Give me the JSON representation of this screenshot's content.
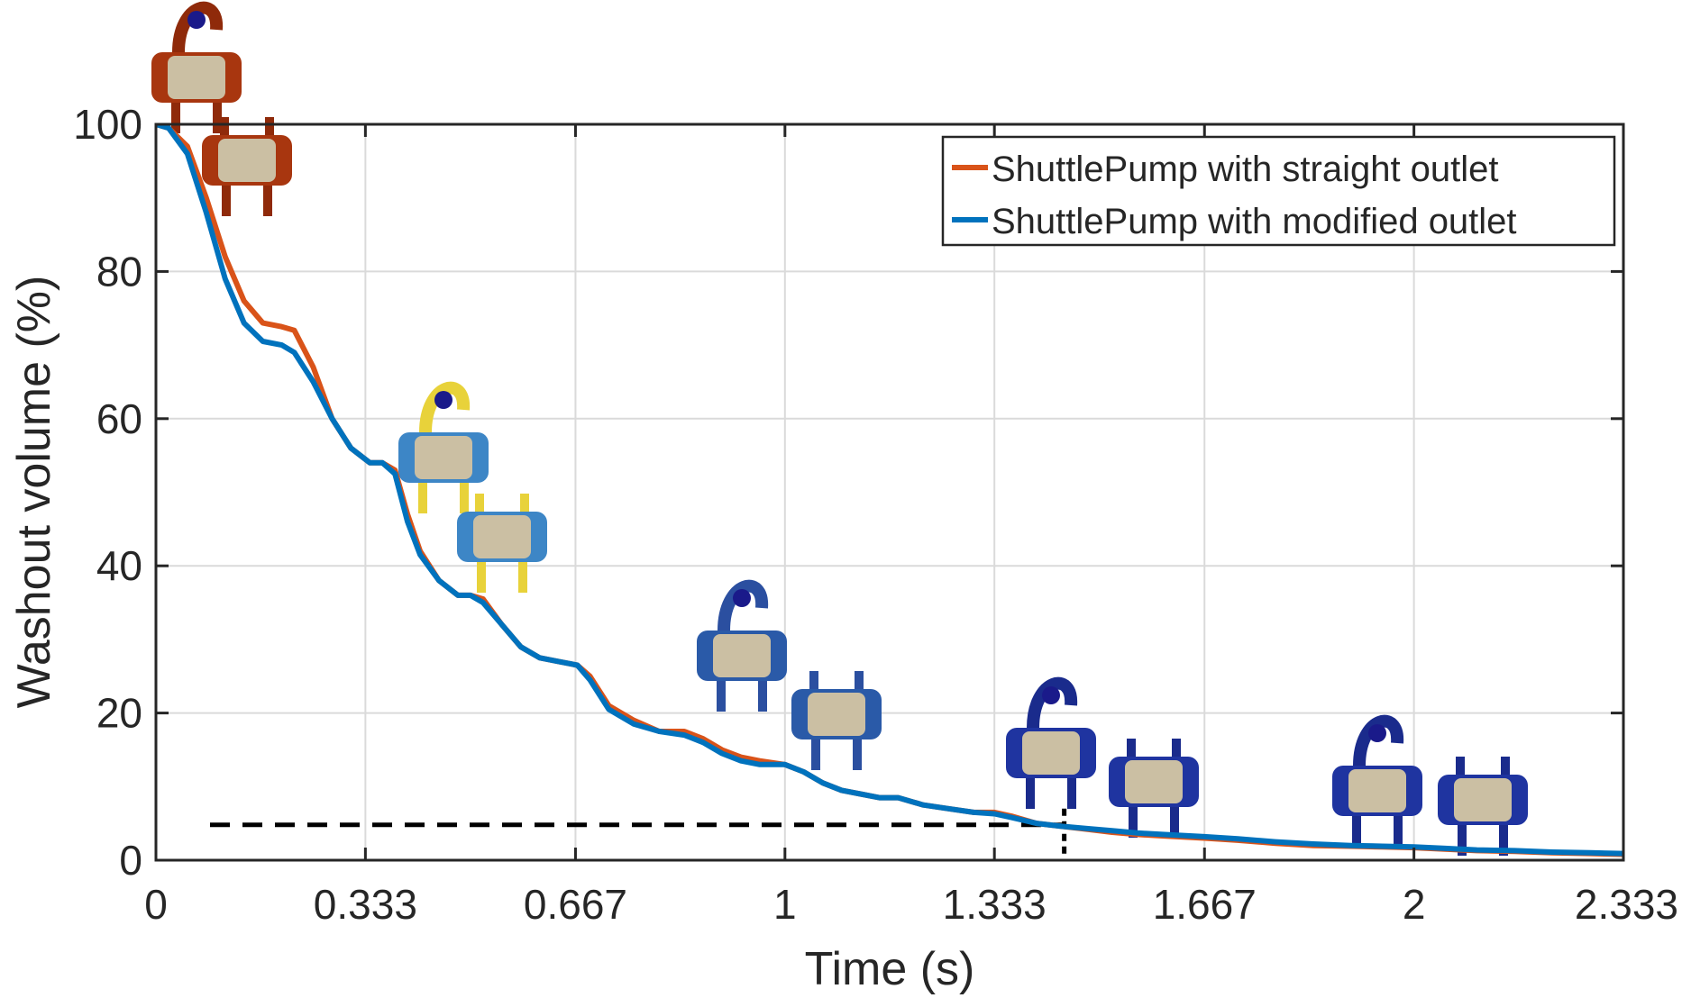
{
  "chart_data": {
    "type": "line",
    "title": "",
    "xlabel": "Time (s)",
    "ylabel": "Washout volume (%)",
    "xlim": [
      0,
      2.333
    ],
    "ylim": [
      0,
      100
    ],
    "x_ticks": [
      0,
      0.333,
      0.667,
      1,
      1.333,
      1.667,
      2,
      2.333
    ],
    "x_tick_labels": [
      "0",
      "0.333",
      "0.667",
      "1",
      "1.333",
      "1.667",
      "2",
      "2.333"
    ],
    "y_ticks": [
      0,
      20,
      40,
      60,
      80,
      100
    ],
    "y_tick_labels": [
      "0",
      "20",
      "40",
      "60",
      "80",
      "100"
    ],
    "grid": true,
    "legend_position": "top-right",
    "series": [
      {
        "name": "ShuttlePump with straight outlet",
        "color": "#d95319",
        "x": [
          0,
          0.02,
          0.05,
          0.08,
          0.11,
          0.14,
          0.17,
          0.2,
          0.22,
          0.25,
          0.28,
          0.31,
          0.34,
          0.36,
          0.38,
          0.4,
          0.42,
          0.45,
          0.48,
          0.5,
          0.52,
          0.55,
          0.58,
          0.61,
          0.64,
          0.67,
          0.69,
          0.72,
          0.76,
          0.8,
          0.84,
          0.87,
          0.9,
          0.93,
          0.96,
          1.0,
          1.03,
          1.06,
          1.09,
          1.12,
          1.15,
          1.18,
          1.22,
          1.26,
          1.3,
          1.333,
          1.36,
          1.4,
          1.44,
          1.48,
          1.52,
          1.56,
          1.6,
          1.667,
          1.72,
          1.78,
          1.84,
          1.9,
          1.95,
          2.0,
          2.05,
          2.1,
          2.16,
          2.22,
          2.28,
          2.333
        ],
        "y": [
          100,
          99.5,
          97,
          90,
          82,
          76,
          73,
          72.5,
          72,
          67,
          60,
          56,
          54,
          54,
          53,
          47,
          42,
          38,
          36,
          36,
          35.5,
          32,
          29,
          27.5,
          27,
          26.5,
          25,
          21,
          19,
          17.5,
          17.5,
          16.5,
          15,
          14,
          13.5,
          13,
          12,
          10.5,
          9.5,
          9,
          8.5,
          8.5,
          7.5,
          7,
          6.5,
          6.5,
          6,
          5,
          4.6,
          4.2,
          3.8,
          3.5,
          3.3,
          3,
          2.7,
          2.3,
          2,
          1.9,
          1.8,
          1.7,
          1.5,
          1.3,
          1.2,
          1.0,
          0.9,
          0.8
        ]
      },
      {
        "name": "ShuttlePump with modified outlet",
        "color": "#0072bd",
        "x": [
          0,
          0.02,
          0.05,
          0.08,
          0.11,
          0.14,
          0.17,
          0.2,
          0.22,
          0.25,
          0.28,
          0.31,
          0.34,
          0.36,
          0.38,
          0.4,
          0.42,
          0.45,
          0.48,
          0.5,
          0.52,
          0.55,
          0.58,
          0.61,
          0.64,
          0.67,
          0.69,
          0.72,
          0.76,
          0.8,
          0.84,
          0.87,
          0.9,
          0.93,
          0.96,
          1.0,
          1.03,
          1.06,
          1.09,
          1.12,
          1.15,
          1.18,
          1.22,
          1.26,
          1.3,
          1.333,
          1.36,
          1.4,
          1.44,
          1.48,
          1.52,
          1.56,
          1.6,
          1.667,
          1.72,
          1.78,
          1.84,
          1.9,
          1.95,
          2.0,
          2.05,
          2.1,
          2.16,
          2.22,
          2.28,
          2.333
        ],
        "y": [
          100,
          99.5,
          96,
          88,
          79,
          73,
          70.5,
          70,
          69,
          65,
          60,
          56,
          54,
          54,
          52.5,
          46,
          41.5,
          38,
          36,
          36,
          35,
          32,
          29,
          27.5,
          27,
          26.5,
          24.5,
          20.5,
          18.5,
          17.5,
          17,
          16,
          14.5,
          13.5,
          13,
          13,
          12,
          10.5,
          9.5,
          9,
          8.5,
          8.5,
          7.5,
          7,
          6.5,
          6.3,
          5.8,
          5,
          4.6,
          4.3,
          4,
          3.7,
          3.5,
          3.2,
          2.9,
          2.5,
          2.2,
          2.0,
          1.9,
          1.8,
          1.6,
          1.4,
          1.3,
          1.1,
          1.0,
          0.9
        ]
      }
    ],
    "annotations": [
      {
        "type": "dashed-guide",
        "x": 1.444,
        "y": 4.8
      }
    ]
  },
  "illustrations": [
    {
      "kind": "pump-snapshot",
      "near_x": 0.06,
      "near_y": 98,
      "colormap": "red"
    },
    {
      "kind": "pump-snapshot",
      "near_x": 0.4,
      "near_y": 55,
      "colormap": "mixed"
    },
    {
      "kind": "pump-snapshot",
      "near_x": 0.9,
      "near_y": 25,
      "colormap": "blue"
    },
    {
      "kind": "pump-snapshot",
      "near_x": 1.4,
      "near_y": 14,
      "colormap": "deep-blue"
    },
    {
      "kind": "pump-snapshot",
      "near_x": 2.0,
      "near_y": 10,
      "colormap": "deep-blue"
    }
  ]
}
